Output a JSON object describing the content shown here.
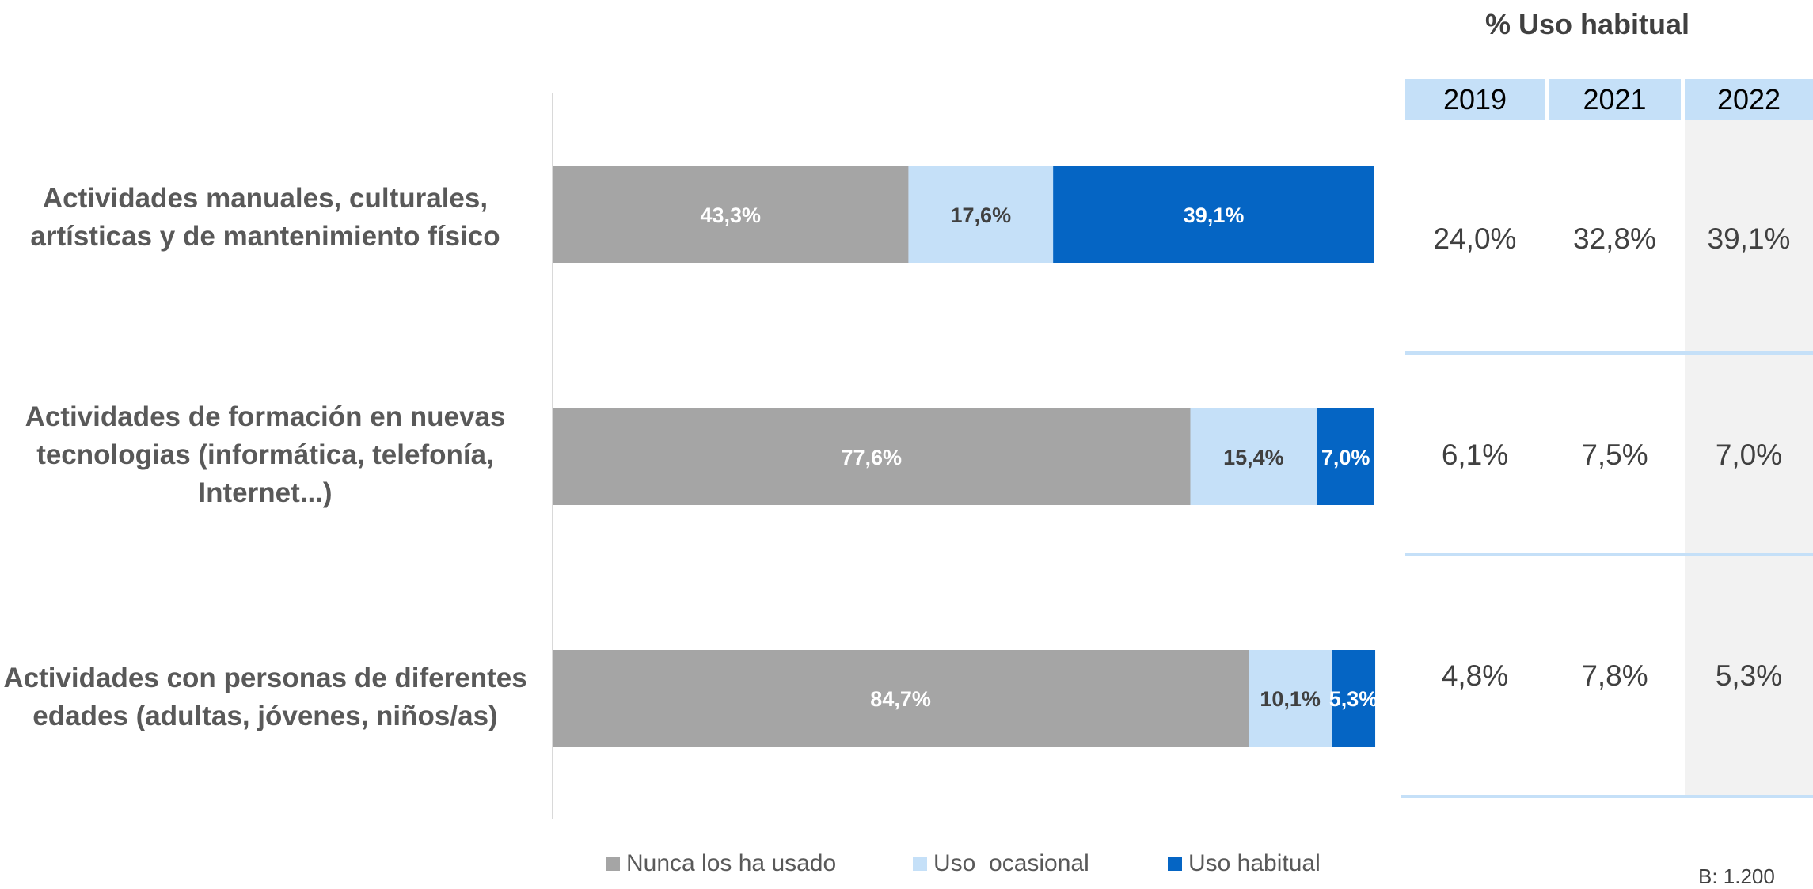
{
  "chart_data": {
    "type": "bar",
    "orientation": "horizontal",
    "stacked": true,
    "categories": [
      "Actividades manuales, culturales, artísticas y de mantenimiento físico",
      "Actividades de formación en nuevas tecnologias (informática, telefonía, Internet...)",
      "Actividades con personas de diferentes edades (adultas, jóvenes, niños/as)"
    ],
    "series": [
      {
        "name": "Nunca los ha usado",
        "values": [
          43.3,
          77.6,
          84.7
        ],
        "labels": [
          "43,3%",
          "77,6%",
          "84,7%"
        ],
        "color": "#a5a5a5"
      },
      {
        "name": "Uso  ocasional",
        "values": [
          17.6,
          15.4,
          10.1
        ],
        "labels": [
          "17,6%",
          "15,4%",
          "10,1%"
        ],
        "color": "#c5e0f8"
      },
      {
        "name": "Uso habitual",
        "values": [
          39.1,
          7.0,
          5.3
        ],
        "labels": [
          "39,1%",
          "7,0%",
          "5,3%"
        ],
        "color": "#0565c4"
      }
    ],
    "xlim": [
      0,
      100
    ],
    "legend_position": "bottom"
  },
  "table": {
    "title": "% Uso habitual",
    "years": [
      "2019",
      "2021",
      "2022"
    ],
    "rows": [
      [
        "24,0%",
        "32,8%",
        "39,1%"
      ],
      [
        "6,1%",
        "7,5%",
        "7,0%"
      ],
      [
        "4,8%",
        "7,8%",
        "5,3%"
      ]
    ]
  },
  "footnote": "B: 1.200"
}
